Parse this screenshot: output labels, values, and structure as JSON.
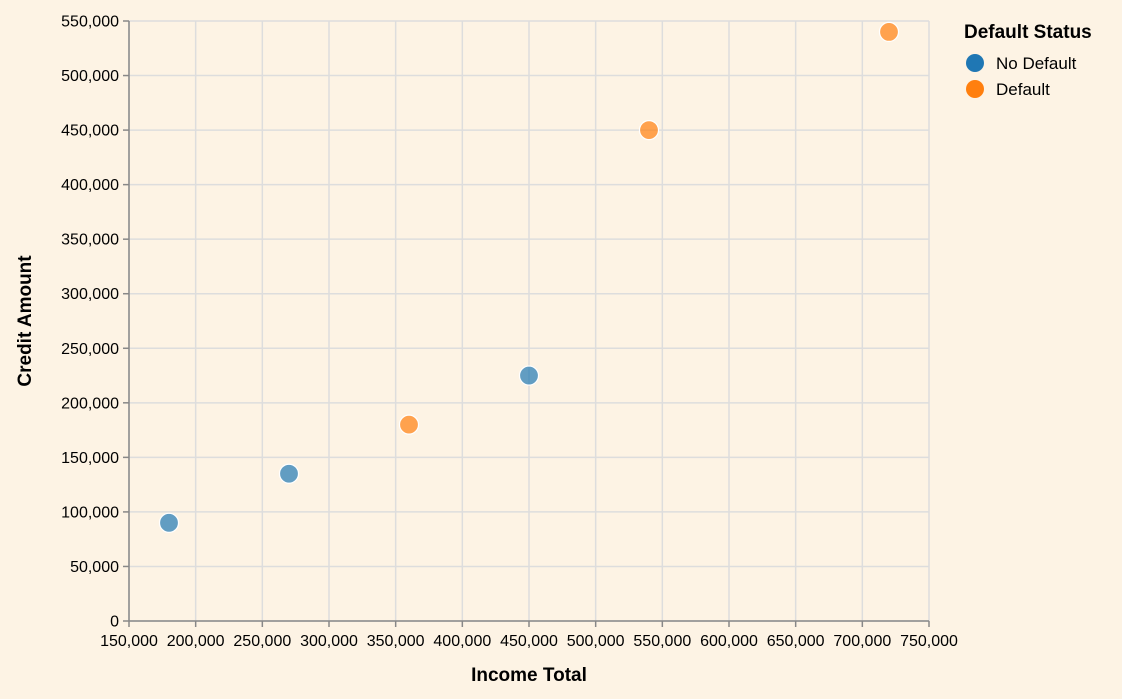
{
  "chart_data": {
    "type": "scatter",
    "title": "",
    "xlabel": "Income Total",
    "ylabel": "Credit Amount",
    "xlim": [
      150000,
      750000
    ],
    "ylim": [
      0,
      550000
    ],
    "x_ticks": [
      150000,
      200000,
      250000,
      300000,
      350000,
      400000,
      450000,
      500000,
      550000,
      600000,
      650000,
      700000,
      750000
    ],
    "x_tick_labels": [
      "150,000",
      "200,000",
      "250,000",
      "300,000",
      "350,000",
      "400,000",
      "450,000",
      "500,000",
      "550,000",
      "600,000",
      "650,000",
      "700,000",
      "750,000"
    ],
    "y_ticks": [
      0,
      50000,
      100000,
      150000,
      200000,
      250000,
      300000,
      350000,
      400000,
      450000,
      500000,
      550000
    ],
    "y_tick_labels": [
      "0",
      "50,000",
      "100,000",
      "150,000",
      "200,000",
      "250,000",
      "300,000",
      "350,000",
      "400,000",
      "450,000",
      "500,000",
      "550,000"
    ],
    "grid": true,
    "legend": {
      "title": "Default Status",
      "placement": "right"
    },
    "series": [
      {
        "name": "No Default",
        "color": "#1f77b4",
        "points": [
          {
            "x": 180000,
            "y": 90000
          },
          {
            "x": 270000,
            "y": 135000
          },
          {
            "x": 450000,
            "y": 225000
          }
        ]
      },
      {
        "name": "Default",
        "color": "#ff7f0e",
        "points": [
          {
            "x": 360000,
            "y": 180000
          },
          {
            "x": 540000,
            "y": 450000
          },
          {
            "x": 720000,
            "y": 540000
          }
        ]
      }
    ]
  }
}
